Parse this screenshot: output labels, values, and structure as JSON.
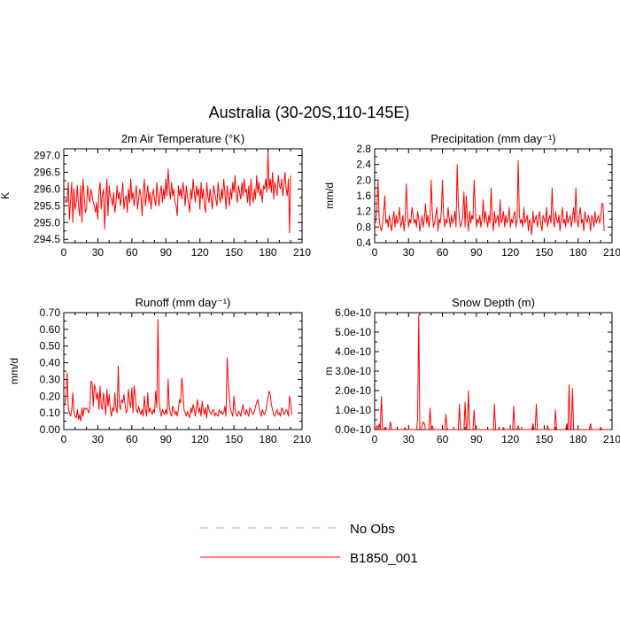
{
  "figure_title": "Australia (30-20S,110-145E)",
  "legend": [
    {
      "label": "No Obs",
      "color": "#9a9aff",
      "dash": true
    },
    {
      "label": "B1850_001",
      "color": "#ff0000",
      "dash": false
    }
  ],
  "chart_data": [
    {
      "type": "line",
      "title": "2m Air Temperature (°K)",
      "ylabel": "K",
      "xlim": [
        0,
        210
      ],
      "ylim": [
        294.4,
        297.2
      ],
      "xticks": [
        0,
        30,
        60,
        90,
        120,
        150,
        180,
        210
      ],
      "yticks": [
        294.5,
        295.0,
        295.5,
        296.0,
        296.5,
        297.0
      ],
      "ytick_labels": [
        "294.5",
        "295.0",
        "295.5",
        "296.0",
        "296.5",
        "297.0"
      ],
      "series": [
        {
          "name": "B1850_001",
          "color": "#ff0000",
          "x_start": 1,
          "values": [
            295.6,
            295.7,
            295.6,
            296.2,
            295.1,
            295.7,
            296.2,
            295.0,
            296.0,
            295.4,
            295.6,
            296.1,
            295.5,
            295.2,
            296.1,
            295.0,
            296.3,
            295.8,
            295.3,
            295.4,
            296.1,
            295.8,
            295.6,
            296.0,
            295.8,
            295.6,
            295.5,
            295.3,
            295.6,
            295.1,
            295.9,
            296.2,
            295.4,
            295.8,
            296.0,
            294.8,
            295.7,
            296.3,
            295.2,
            296.1,
            295.8,
            295.7,
            295.5,
            295.9,
            295.3,
            295.6,
            296.1,
            295.7,
            295.9,
            295.5,
            295.8,
            296.2,
            295.4,
            295.7,
            295.8,
            295.3,
            296.0,
            295.6,
            296.3,
            295.7,
            295.9,
            295.5,
            295.8,
            296.1,
            295.4,
            295.7,
            296.0,
            295.8,
            295.2,
            295.9,
            296.3,
            295.5,
            295.8,
            296.1,
            295.6,
            295.9,
            295.4,
            295.8,
            296.0,
            295.7,
            295.5,
            296.2,
            295.8,
            295.5,
            295.9,
            296.1,
            295.6,
            296.0,
            295.7,
            296.3,
            295.8,
            296.6,
            296.0,
            295.7,
            296.2,
            295.8,
            296.0,
            295.6,
            295.5,
            295.2,
            296.1,
            295.8,
            296.0,
            295.7,
            296.2,
            295.9,
            295.5,
            296.1,
            295.8,
            295.6,
            295.3,
            296.0,
            295.7,
            296.3,
            295.9,
            295.6,
            296.1,
            295.8,
            296.0,
            295.4,
            296.2,
            295.7,
            296.0,
            295.5,
            295.3,
            296.2,
            295.8,
            295.6,
            296.0,
            295.7,
            295.4,
            296.1,
            295.9,
            295.7,
            295.5,
            296.2,
            295.8,
            295.6,
            296.0,
            295.7,
            296.3,
            295.9,
            295.4,
            296.1,
            295.8,
            295.5,
            296.0,
            295.7,
            296.2,
            295.9,
            296.4,
            295.8,
            295.6,
            296.1,
            295.9,
            295.7,
            296.2,
            295.8,
            296.3,
            295.9,
            296.0,
            295.6,
            296.1,
            295.5,
            296.3,
            295.8,
            295.6,
            296.0,
            295.7,
            296.4,
            295.9,
            296.2,
            295.8,
            296.0,
            295.6,
            296.1,
            296.0,
            296.3,
            295.9,
            297.1,
            296.0,
            296.3,
            295.9,
            296.5,
            295.7,
            296.2,
            296.0,
            295.8,
            296.4,
            296.1,
            296.0,
            296.3,
            295.8,
            296.1,
            296.5,
            296.0,
            295.8,
            296.3,
            294.7,
            296.4
          ]
        }
      ]
    },
    {
      "type": "line",
      "title": "Precipitation (mm day⁻¹)",
      "ylabel": "mm/d",
      "xlim": [
        0,
        210
      ],
      "ylim": [
        0.4,
        2.8
      ],
      "xticks": [
        0,
        30,
        60,
        90,
        120,
        150,
        180,
        210
      ],
      "yticks": [
        0.4,
        0.8,
        1.2,
        1.6,
        2.0,
        2.4,
        2.8
      ],
      "ytick_labels": [
        "0.4",
        "0.8",
        "1.2",
        "1.6",
        "2.0",
        "2.4",
        "2.8"
      ],
      "series": [
        {
          "name": "B1850_001",
          "color": "#ff0000",
          "x_start": 1,
          "values": [
            0.9,
            1.3,
            2.0,
            1.0,
            0.8,
            0.7,
            0.9,
            1.2,
            1.6,
            0.9,
            1.0,
            0.8,
            1.1,
            0.9,
            0.7,
            1.0,
            1.2,
            0.8,
            1.1,
            0.9,
            1.0,
            1.3,
            0.8,
            0.9,
            1.1,
            0.7,
            1.0,
            1.9,
            1.2,
            0.8,
            1.0,
            0.9,
            1.3,
            1.1,
            0.9,
            1.0,
            0.8,
            1.2,
            1.0,
            0.7,
            0.9,
            1.1,
            0.8,
            1.0,
            1.4,
            0.9,
            1.1,
            0.8,
            1.0,
            2.0,
            1.2,
            0.8,
            0.9,
            1.1,
            1.3,
            0.7,
            1.0,
            0.9,
            1.2,
            2.0,
            1.1,
            0.8,
            1.0,
            0.9,
            1.3,
            1.0,
            0.8,
            1.1,
            0.9,
            1.0,
            1.2,
            0.8,
            2.4,
            1.4,
            1.0,
            0.8,
            0.9,
            1.1,
            1.7,
            0.8,
            1.6,
            1.0,
            0.7,
            1.2,
            0.9,
            1.1,
            1.0,
            2.0,
            1.3,
            0.8,
            1.0,
            0.9,
            1.1,
            0.8,
            1.0,
            1.5,
            0.9,
            1.2,
            1.0,
            0.8,
            1.1,
            0.9,
            1.8,
            1.0,
            0.7,
            1.2,
            0.9,
            1.0,
            1.1,
            0.8,
            1.5,
            0.9,
            1.0,
            1.2,
            0.8,
            1.1,
            0.9,
            1.0,
            1.3,
            0.8,
            1.0,
            0.9,
            1.1,
            1.2,
            0.8,
            1.0,
            2.5,
            1.1,
            0.9,
            1.0,
            0.8,
            1.3,
            0.9,
            1.0,
            1.1,
            0.7,
            1.0,
            0.9,
            0.6,
            1.2,
            0.9,
            1.0,
            1.1,
            0.8,
            1.0,
            1.2,
            0.9,
            0.7,
            1.1,
            1.0,
            0.9,
            1.3,
            0.8,
            1.0,
            1.1,
            0.9,
            1.8,
            1.0,
            0.8,
            1.2,
            1.0,
            0.9,
            1.1,
            0.7,
            1.0,
            1.3,
            0.9,
            1.0,
            0.8,
            1.2,
            0.9,
            1.0,
            1.1,
            0.8,
            1.0,
            1.3,
            0.9,
            1.8,
            1.0,
            0.8,
            1.1,
            1.3,
            0.9,
            1.0,
            0.7,
            1.2,
            1.0,
            0.9,
            1.1,
            1.0,
            0.7,
            1.1,
            1.0,
            0.8,
            1.2,
            0.9,
            1.0,
            1.1,
            0.9,
            1.0,
            1.4,
            1.4,
            0.7
          ]
        }
      ]
    },
    {
      "type": "line",
      "title": "Runoff (mm day⁻¹)",
      "ylabel": "mm/d",
      "xlim": [
        0,
        210
      ],
      "ylim": [
        0.0,
        0.7
      ],
      "xticks": [
        0,
        30,
        60,
        90,
        120,
        150,
        180,
        210
      ],
      "yticks": [
        0.0,
        0.1,
        0.2,
        0.3,
        0.4,
        0.5,
        0.6,
        0.7
      ],
      "ytick_labels": [
        "0.00",
        "0.10",
        "0.20",
        "0.30",
        "0.40",
        "0.50",
        "0.60",
        "0.70"
      ],
      "series": [
        {
          "name": "B1850_001",
          "color": "#ff0000",
          "x_start": 1,
          "values": [
            0.15,
            0.2,
            0.34,
            0.12,
            0.1,
            0.08,
            0.12,
            0.22,
            0.1,
            0.08,
            0.07,
            0.12,
            0.06,
            0.09,
            0.05,
            0.13,
            0.08,
            0.13,
            0.12,
            0.13,
            0.12,
            0.1,
            0.13,
            0.29,
            0.28,
            0.14,
            0.27,
            0.24,
            0.18,
            0.22,
            0.12,
            0.26,
            0.14,
            0.12,
            0.22,
            0.16,
            0.09,
            0.24,
            0.14,
            0.21,
            0.12,
            0.08,
            0.13,
            0.11,
            0.22,
            0.13,
            0.1,
            0.38,
            0.14,
            0.12,
            0.18,
            0.16,
            0.21,
            0.15,
            0.1,
            0.12,
            0.24,
            0.17,
            0.13,
            0.25,
            0.1,
            0.26,
            0.21,
            0.12,
            0.1,
            0.14,
            0.11,
            0.09,
            0.12,
            0.08,
            0.2,
            0.12,
            0.08,
            0.22,
            0.1,
            0.13,
            0.11,
            0.09,
            0.12,
            0.1,
            0.23,
            0.13,
            0.66,
            0.18,
            0.11,
            0.08,
            0.12,
            0.1,
            0.09,
            0.12,
            0.09,
            0.3,
            0.13,
            0.1,
            0.08,
            0.14,
            0.12,
            0.09,
            0.11,
            0.08,
            0.12,
            0.18,
            0.16,
            0.31,
            0.23,
            0.12,
            0.1,
            0.08,
            0.11,
            0.09,
            0.07,
            0.13,
            0.1,
            0.15,
            0.12,
            0.08,
            0.14,
            0.18,
            0.1,
            0.13,
            0.08,
            0.17,
            0.12,
            0.09,
            0.13,
            0.07,
            0.15,
            0.12,
            0.1,
            0.09,
            0.11,
            0.12,
            0.08,
            0.1,
            0.09,
            0.08,
            0.12,
            0.1,
            0.11,
            0.09,
            0.1,
            0.14,
            0.08,
            0.43,
            0.29,
            0.19,
            0.12,
            0.1,
            0.08,
            0.2,
            0.12,
            0.09,
            0.08,
            0.11,
            0.1,
            0.08,
            0.12,
            0.15,
            0.1,
            0.09,
            0.12,
            0.1,
            0.08,
            0.13,
            0.12,
            0.1,
            0.09,
            0.11,
            0.14,
            0.16,
            0.18,
            0.14,
            0.1,
            0.08,
            0.12,
            0.1,
            0.09,
            0.11,
            0.15,
            0.19,
            0.23,
            0.21,
            0.15,
            0.12,
            0.09,
            0.08,
            0.1,
            0.12,
            0.09,
            0.1,
            0.08,
            0.13,
            0.12,
            0.09,
            0.1,
            0.12,
            0.11,
            0.08,
            0.2,
            0.16,
            0.09
          ]
        }
      ]
    },
    {
      "type": "line",
      "title": "Snow Depth (m)",
      "ylabel": "m",
      "xlim": [
        0,
        210
      ],
      "ylim": [
        0.0,
        6e-10
      ],
      "xticks": [
        0,
        30,
        60,
        90,
        120,
        150,
        180,
        210
      ],
      "yticks": [
        0,
        1e-10,
        2e-10,
        3e-10,
        4e-10,
        5e-10,
        6e-10
      ],
      "ytick_labels": [
        "0.0e-10",
        "1.0e-10",
        "2.0e-10",
        "3.0e-10",
        "4.0e-10",
        "5.0e-10",
        "6.0e-10"
      ],
      "series": [
        {
          "name": "B1850_001",
          "color": "#ff0000",
          "x_start": 1,
          "values": [
            0,
            2e-11,
            0,
            3e-11,
            0,
            1.7e-10,
            0,
            0,
            1e-11,
            0,
            0,
            0,
            0,
            4e-11,
            0,
            0,
            0,
            0,
            0,
            0,
            0,
            0,
            0,
            0,
            0,
            0,
            1e-11,
            0,
            0,
            0,
            0,
            0,
            0,
            0,
            0,
            0,
            0,
            5e-11,
            5.9e-10,
            0,
            0,
            2e-11,
            4e-11,
            3e-11,
            0,
            0,
            0,
            0,
            1.1e-10,
            0,
            2e-11,
            0,
            0,
            0,
            0,
            0,
            0,
            0,
            0,
            0,
            0,
            0,
            8e-11,
            1e-11,
            0,
            0,
            0,
            0,
            0,
            0,
            0,
            0,
            0,
            0,
            1.3e-10,
            0,
            0,
            0,
            0,
            1.4e-10,
            0,
            2e-11,
            2e-10,
            0,
            0,
            0,
            0,
            1e-10,
            0,
            0,
            0,
            0,
            0,
            0,
            0,
            0,
            0,
            0,
            0,
            0,
            0,
            0,
            0,
            0,
            0,
            1.3e-10,
            0,
            0,
            0,
            0,
            0,
            0,
            0,
            1e-11,
            0,
            0,
            0,
            0,
            0,
            0,
            0,
            0,
            1.2e-10,
            0,
            0,
            0,
            2e-11,
            0,
            0,
            0,
            0,
            0,
            0,
            0,
            0,
            0,
            0,
            0,
            0,
            3e-11,
            0,
            0,
            1.3e-10,
            0,
            0,
            0,
            0,
            0,
            0,
            0,
            0,
            0,
            2e-11,
            0,
            0,
            0,
            0,
            0,
            0,
            1e-10,
            0,
            0,
            0,
            0,
            0,
            0,
            0,
            0,
            0,
            3e-11,
            0,
            2.3e-10,
            0,
            0,
            2.1e-10,
            0,
            0,
            0,
            0,
            0,
            0,
            0,
            0,
            0,
            0,
            0,
            0,
            0,
            0,
            0,
            3e-11,
            0,
            0,
            0,
            0,
            0,
            0,
            0,
            0,
            1e-11,
            0,
            0,
            0,
            0,
            0,
            0,
            0,
            0
          ]
        }
      ]
    }
  ]
}
